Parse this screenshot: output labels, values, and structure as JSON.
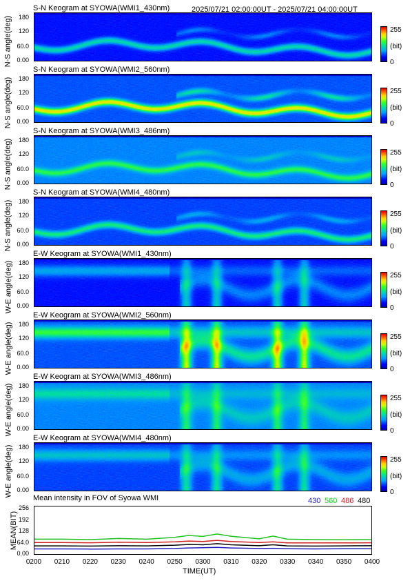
{
  "date_range": "2025/07/21 02:00:00UT - 2025/07/21 04:00:00UT",
  "colorbar": {
    "max": "255",
    "unit": "(bit)",
    "min": "0"
  },
  "keograms": [
    {
      "title": "S-N Keogram at SYOWA(WMI1_430nm)",
      "ylabel": "N-S angle(deg)",
      "yticks": [
        "180",
        "120",
        "60.0",
        "0.00"
      ],
      "colormap_range": [
        0,
        255
      ]
    },
    {
      "title": "S-N Keogram at SYOWA(WMI2_560nm)",
      "ylabel": "N-S angle(deg)",
      "yticks": [
        "180",
        "120",
        "60.0",
        "0.00"
      ],
      "colormap_range": [
        0,
        255
      ]
    },
    {
      "title": "S-N Keogram at SYOWA(WMI3_486nm)",
      "ylabel": "N-S angle(deg)",
      "yticks": [
        "180",
        "120",
        "60.0",
        "0.00"
      ],
      "colormap_range": [
        0,
        255
      ]
    },
    {
      "title": "S-N Keogram at SYOWA(WMI4_480nm)",
      "ylabel": "N-S angle(deg)",
      "yticks": [
        "180",
        "120",
        "60.0",
        "0.00"
      ],
      "colormap_range": [
        0,
        255
      ]
    },
    {
      "title": "E-W Keogram at SYOWA(WMI1_430nm)",
      "ylabel": "W-E angle(deg)",
      "yticks": [
        "180",
        "120",
        "60.0",
        "0.00"
      ],
      "colormap_range": [
        0,
        255
      ]
    },
    {
      "title": "E-W Keogram at SYOWA(WMI2_560nm)",
      "ylabel": "W-E angle(deg)",
      "yticks": [
        "180",
        "120",
        "60.0",
        "0.00"
      ],
      "colormap_range": [
        0,
        255
      ]
    },
    {
      "title": "E-W Keogram at SYOWA(WMI3_486nm)",
      "ylabel": "W-E angle(deg)",
      "yticks": [
        "180",
        "120",
        "60.0",
        "0.00"
      ],
      "colormap_range": [
        0,
        255
      ]
    },
    {
      "title": "E-W Keogram at SYOWA(WMI4_480nm)",
      "ylabel": "W-E angle(deg)",
      "yticks": [
        "180",
        "120",
        "60.0",
        "0.00"
      ],
      "colormap_range": [
        0,
        255
      ]
    }
  ],
  "mean_panel": {
    "title": "Mean intensity in FOV of Syowa WMI",
    "ylabel": "MEAN(BIT)",
    "yticks": [
      "256",
      "192",
      "128",
      "64.0",
      "0.00"
    ],
    "legend": [
      {
        "label": "430",
        "color": "#2020c0"
      },
      {
        "label": "560",
        "color": "#20c020"
      },
      {
        "label": "486",
        "color": "#d02020"
      },
      {
        "label": "480",
        "color": "#000000"
      }
    ]
  },
  "xaxis": {
    "ticks": [
      "0200",
      "0210",
      "0220",
      "0230",
      "0240",
      "0250",
      "0300",
      "0310",
      "0320",
      "0330",
      "0340",
      "0350",
      "0400"
    ],
    "label": "TIME(UT)"
  },
  "chart_data": {
    "type": "line",
    "title": "Mean intensity in FOV of Syowa WMI",
    "xlabel": "TIME(UT)",
    "ylabel": "MEAN(BIT)",
    "x_range": [
      "0200",
      "0400"
    ],
    "ylim": [
      0,
      256
    ],
    "x": [
      "0200",
      "0210",
      "0220",
      "0230",
      "0240",
      "0250",
      "0255",
      "0300",
      "0305",
      "0310",
      "0320",
      "0325",
      "0330",
      "0340",
      "0350",
      "0400"
    ],
    "series": [
      {
        "name": "430",
        "color": "#2020c0",
        "values": [
          28,
          28,
          27,
          28,
          28,
          30,
          33,
          34,
          36,
          33,
          30,
          31,
          29,
          28,
          29,
          29
        ]
      },
      {
        "name": "560",
        "color": "#20c020",
        "values": [
          80,
          80,
          78,
          84,
          80,
          90,
          100,
          95,
          108,
          96,
          82,
          97,
          80,
          78,
          77,
          78
        ]
      },
      {
        "name": "486",
        "color": "#d02020",
        "values": [
          62,
          62,
          61,
          64,
          62,
          66,
          70,
          68,
          74,
          68,
          62,
          66,
          60,
          60,
          60,
          61
        ]
      },
      {
        "name": "480",
        "color": "#000000",
        "values": [
          44,
          44,
          43,
          45,
          44,
          48,
          52,
          50,
          56,
          50,
          45,
          50,
          44,
          43,
          44,
          45
        ]
      }
    ]
  }
}
